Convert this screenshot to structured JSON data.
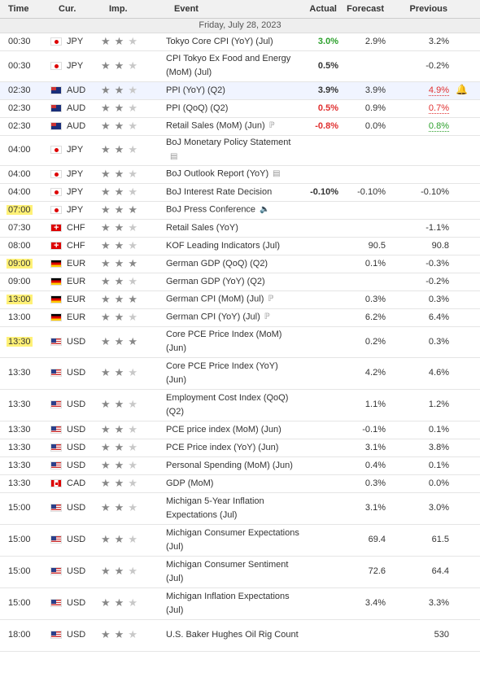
{
  "headers": {
    "time": "Time",
    "cur": "Cur.",
    "imp": "Imp.",
    "event": "Event",
    "actual": "Actual",
    "forecast": "Forecast",
    "previous": "Previous"
  },
  "date": "Friday, July 28, 2023",
  "colors": {
    "green": "#2ca02c",
    "red": "#e03030",
    "highlight": "#fff176"
  },
  "rows": [
    {
      "time": "00:30",
      "flag": "jp",
      "cur": "JPY",
      "stars": 2,
      "event": "Tokyo Core CPI (YoY) (Jul)",
      "actual": "3.0%",
      "actual_color": "green",
      "forecast": "2.9%",
      "previous": "3.2%"
    },
    {
      "time": "00:30",
      "flag": "jp",
      "cur": "JPY",
      "stars": 2,
      "event": "CPI Tokyo Ex Food and Energy (MoM) (Jul)",
      "actual": "0.5%",
      "forecast": "",
      "previous": "-0.2%"
    },
    {
      "time": "02:30",
      "flag": "au",
      "cur": "AUD",
      "stars": 2,
      "event": "PPI (YoY) (Q2)",
      "actual": "3.9%",
      "forecast": "3.9%",
      "previous": "4.9%",
      "prev_style": "uline-red",
      "bell": true,
      "row_hl": true
    },
    {
      "time": "02:30",
      "flag": "au",
      "cur": "AUD",
      "stars": 2,
      "event": "PPI (QoQ) (Q2)",
      "actual": "0.5%",
      "actual_color": "red",
      "forecast": "0.9%",
      "previous": "0.7%",
      "prev_style": "uline-red"
    },
    {
      "time": "02:30",
      "flag": "au",
      "cur": "AUD",
      "stars": 2,
      "event": "Retail Sales (MoM) (Jun)",
      "icon": "P",
      "actual": "-0.8%",
      "actual_color": "red",
      "forecast": "0.0%",
      "previous": "0.8%",
      "prev_style": "uline-green"
    },
    {
      "time": "04:00",
      "flag": "jp",
      "cur": "JPY",
      "stars": 2,
      "event": "BoJ Monetary Policy Statement",
      "icon": "doc",
      "actual": "",
      "forecast": "",
      "previous": ""
    },
    {
      "time": "04:00",
      "flag": "jp",
      "cur": "JPY",
      "stars": 2,
      "event": "BoJ Outlook Report (YoY)",
      "icon": "doc",
      "actual": "",
      "forecast": "",
      "previous": ""
    },
    {
      "time": "04:00",
      "flag": "jp",
      "cur": "JPY",
      "stars": 2,
      "event": "BoJ Interest Rate Decision",
      "actual": "-0.10%",
      "forecast": "-0.10%",
      "previous": "-0.10%"
    },
    {
      "time": "07:00",
      "time_hl": true,
      "flag": "jp",
      "cur": "JPY",
      "stars": 3,
      "event": "BoJ Press Conference",
      "icon": "speaker",
      "actual": "",
      "forecast": "",
      "previous": ""
    },
    {
      "time": "07:30",
      "flag": "ch",
      "cur": "CHF",
      "stars": 2,
      "event": "Retail Sales (YoY)",
      "actual": "",
      "forecast": "",
      "previous": "-1.1%"
    },
    {
      "time": "08:00",
      "flag": "ch",
      "cur": "CHF",
      "stars": 2,
      "event": "KOF Leading Indicators (Jul)",
      "actual": "",
      "forecast": "90.5",
      "previous": "90.8"
    },
    {
      "time": "09:00",
      "time_hl": true,
      "flag": "de",
      "cur": "EUR",
      "stars": 3,
      "event": "German GDP (QoQ) (Q2)",
      "actual": "",
      "forecast": "0.1%",
      "previous": "-0.3%"
    },
    {
      "time": "09:00",
      "flag": "de",
      "cur": "EUR",
      "stars": 2,
      "event": "German GDP (YoY) (Q2)",
      "actual": "",
      "forecast": "",
      "previous": "-0.2%"
    },
    {
      "time": "13:00",
      "time_hl": true,
      "flag": "de",
      "cur": "EUR",
      "stars": 3,
      "event": "German CPI (MoM) (Jul)",
      "icon": "P",
      "actual": "",
      "forecast": "0.3%",
      "previous": "0.3%"
    },
    {
      "time": "13:00",
      "flag": "de",
      "cur": "EUR",
      "stars": 2,
      "event": "German CPI (YoY) (Jul)",
      "icon": "P",
      "actual": "",
      "forecast": "6.2%",
      "previous": "6.4%"
    },
    {
      "time": "13:30",
      "time_hl": true,
      "flag": "us",
      "cur": "USD",
      "stars": 3,
      "event": "Core PCE Price Index (MoM) (Jun)",
      "actual": "",
      "forecast": "0.2%",
      "previous": "0.3%"
    },
    {
      "time": "13:30",
      "flag": "us",
      "cur": "USD",
      "stars": 2,
      "event": "Core PCE Price Index (YoY) (Jun)",
      "actual": "",
      "forecast": "4.2%",
      "previous": "4.6%"
    },
    {
      "time": "13:30",
      "flag": "us",
      "cur": "USD",
      "stars": 2,
      "event": "Employment Cost Index (QoQ) (Q2)",
      "actual": "",
      "forecast": "1.1%",
      "previous": "1.2%"
    },
    {
      "time": "13:30",
      "flag": "us",
      "cur": "USD",
      "stars": 2,
      "event": "PCE price index (MoM) (Jun)",
      "actual": "",
      "forecast": "-0.1%",
      "previous": "0.1%"
    },
    {
      "time": "13:30",
      "flag": "us",
      "cur": "USD",
      "stars": 2,
      "event": "PCE Price index (YoY) (Jun)",
      "actual": "",
      "forecast": "3.1%",
      "previous": "3.8%"
    },
    {
      "time": "13:30",
      "flag": "us",
      "cur": "USD",
      "stars": 2,
      "event": "Personal Spending (MoM) (Jun)",
      "actual": "",
      "forecast": "0.4%",
      "previous": "0.1%"
    },
    {
      "time": "13:30",
      "flag": "ca",
      "cur": "CAD",
      "stars": 2,
      "event": "GDP (MoM)",
      "actual": "",
      "forecast": "0.3%",
      "previous": "0.0%"
    },
    {
      "time": "15:00",
      "flag": "us",
      "cur": "USD",
      "stars": 2,
      "event": "Michigan 5-Year Inflation Expectations (Jul)",
      "actual": "",
      "forecast": "3.1%",
      "previous": "3.0%"
    },
    {
      "time": "15:00",
      "flag": "us",
      "cur": "USD",
      "stars": 2,
      "event": "Michigan Consumer Expectations (Jul)",
      "actual": "",
      "forecast": "69.4",
      "previous": "61.5"
    },
    {
      "time": "15:00",
      "flag": "us",
      "cur": "USD",
      "stars": 2,
      "event": "Michigan Consumer Sentiment (Jul)",
      "actual": "",
      "forecast": "72.6",
      "previous": "64.4"
    },
    {
      "time": "15:00",
      "flag": "us",
      "cur": "USD",
      "stars": 2,
      "event": "Michigan Inflation Expectations (Jul)",
      "actual": "",
      "forecast": "3.4%",
      "previous": "3.3%"
    },
    {
      "time": "18:00",
      "flag": "us",
      "cur": "USD",
      "stars": 2,
      "event": "U.S. Baker Hughes Oil Rig Count",
      "actual": "",
      "forecast": "",
      "previous": "530"
    }
  ]
}
